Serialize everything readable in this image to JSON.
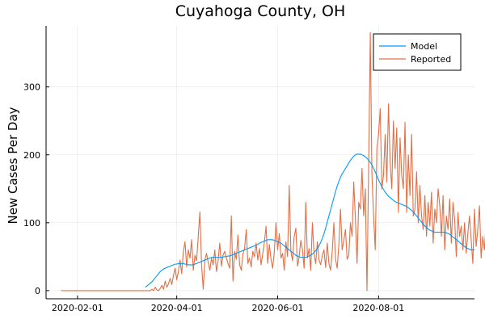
{
  "chart_data": {
    "type": "line",
    "title": "Cuyahoga County, OH",
    "xlabel": "",
    "ylabel": "New Cases Per Day",
    "xlim": [
      "2020-01-13",
      "2020-09-28"
    ],
    "ylim": [
      -12,
      390
    ],
    "x_ticks": [
      "2020-02-01",
      "2020-04-01",
      "2020-06-01",
      "2020-08-01"
    ],
    "y_ticks": [
      0,
      100,
      200,
      300
    ],
    "grid": true,
    "legend_position": "top-right",
    "colors": {
      "Model": "#009AFA",
      "Reported": "#E26F46"
    },
    "series": [
      {
        "name": "Model",
        "start_date": "2020-03-13",
        "values": [
          5,
          7,
          9,
          11,
          13,
          16,
          19,
          22,
          25,
          28,
          30,
          32,
          33,
          34,
          35,
          36,
          37,
          38,
          39,
          39,
          40,
          40,
          40,
          40,
          39,
          39,
          38,
          38,
          38,
          38,
          39,
          40,
          41,
          42,
          43,
          44,
          45,
          46,
          47,
          48,
          49,
          49,
          49,
          49,
          49,
          49,
          49,
          50,
          50,
          50,
          51,
          51,
          52,
          53,
          54,
          55,
          56,
          57,
          58,
          59,
          60,
          61,
          62,
          63,
          64,
          65,
          66,
          67,
          68,
          70,
          71,
          72,
          73,
          74,
          75,
          75,
          75,
          75,
          74,
          73,
          72,
          71,
          70,
          68,
          66,
          64,
          62,
          60,
          58,
          56,
          54,
          52,
          51,
          50,
          49,
          49,
          49,
          49,
          50,
          51,
          52,
          54,
          56,
          59,
          62,
          66,
          71,
          77,
          84,
          92,
          101,
          110,
          119,
          128,
          137,
          146,
          154,
          161,
          167,
          172,
          176,
          180,
          184,
          188,
          192,
          195,
          198,
          200,
          201,
          201,
          201,
          200,
          199,
          197,
          195,
          192,
          189,
          185,
          180,
          175,
          169,
          163,
          158,
          153,
          149,
          145,
          142,
          139,
          137,
          135,
          133,
          131,
          130,
          129,
          128,
          127,
          126,
          125,
          124,
          122,
          120,
          118,
          116,
          113,
          110,
          107,
          104,
          101,
          98,
          95,
          93,
          91,
          89,
          88,
          87,
          86,
          86,
          86,
          86,
          86,
          86,
          86,
          85,
          84,
          83,
          81,
          79,
          77,
          75,
          73,
          71,
          69,
          67,
          65,
          63,
          62,
          61,
          60,
          60,
          60
        ]
      },
      {
        "name": "Reported",
        "start_date": "2020-01-22",
        "values": [
          0,
          0,
          0,
          0,
          0,
          0,
          0,
          0,
          0,
          0,
          0,
          0,
          0,
          0,
          0,
          0,
          0,
          0,
          0,
          0,
          0,
          0,
          0,
          0,
          0,
          0,
          0,
          0,
          0,
          0,
          0,
          0,
          0,
          0,
          0,
          0,
          0,
          0,
          0,
          0,
          0,
          0,
          0,
          0,
          0,
          0,
          0,
          0,
          0,
          0,
          0,
          0,
          0,
          0,
          0,
          2,
          0,
          5,
          1,
          0,
          3,
          8,
          2,
          14,
          5,
          10,
          18,
          9,
          22,
          33,
          16,
          28,
          45,
          25,
          58,
          72,
          35,
          60,
          48,
          75,
          30,
          52,
          44,
          80,
          116,
          38,
          2,
          45,
          55,
          42,
          30,
          48,
          38,
          60,
          28,
          44,
          70,
          36,
          52,
          58,
          48,
          40,
          33,
          110,
          14,
          58,
          46,
          82,
          38,
          30,
          54,
          62,
          90,
          40,
          48,
          35,
          58,
          50,
          70,
          45,
          62,
          38,
          55,
          72,
          95,
          40,
          68,
          46,
          33,
          58,
          100,
          60,
          84,
          48,
          55,
          30,
          72,
          50,
          155,
          58,
          44,
          80,
          92,
          36,
          50,
          74,
          60,
          33,
          130,
          48,
          62,
          30,
          100,
          55,
          40,
          72,
          45,
          38,
          52,
          60,
          34,
          70,
          40,
          30,
          58,
          100,
          46,
          33,
          68,
          120,
          60,
          74,
          90,
          46,
          52,
          100,
          80,
          160,
          106,
          40,
          130,
          120,
          180,
          110,
          150,
          0,
          180,
          380,
          170,
          110,
          60,
          210,
          230,
          268,
          150,
          170,
          230,
          160,
          275,
          190,
          150,
          250,
          180,
          240,
          115,
          225,
          170,
          150,
          248,
          115,
          200,
          140,
          230,
          110,
          120,
          175,
          100,
          155,
          110,
          90,
          140,
          80,
          130,
          95,
          145,
          70,
          120,
          100,
          150,
          125,
          80,
          140,
          60,
          110,
          90,
          135,
          70,
          130,
          105,
          50,
          115,
          80,
          95,
          60,
          100,
          55,
          85,
          110,
          75,
          40,
          120,
          65,
          90,
          125,
          48,
          80,
          60,
          100,
          40,
          70,
          55,
          80,
          40,
          90,
          75,
          60,
          45,
          55,
          75,
          60,
          50,
          65,
          45,
          60,
          70,
          55,
          65,
          75,
          60,
          50,
          70,
          60
        ]
      }
    ]
  }
}
